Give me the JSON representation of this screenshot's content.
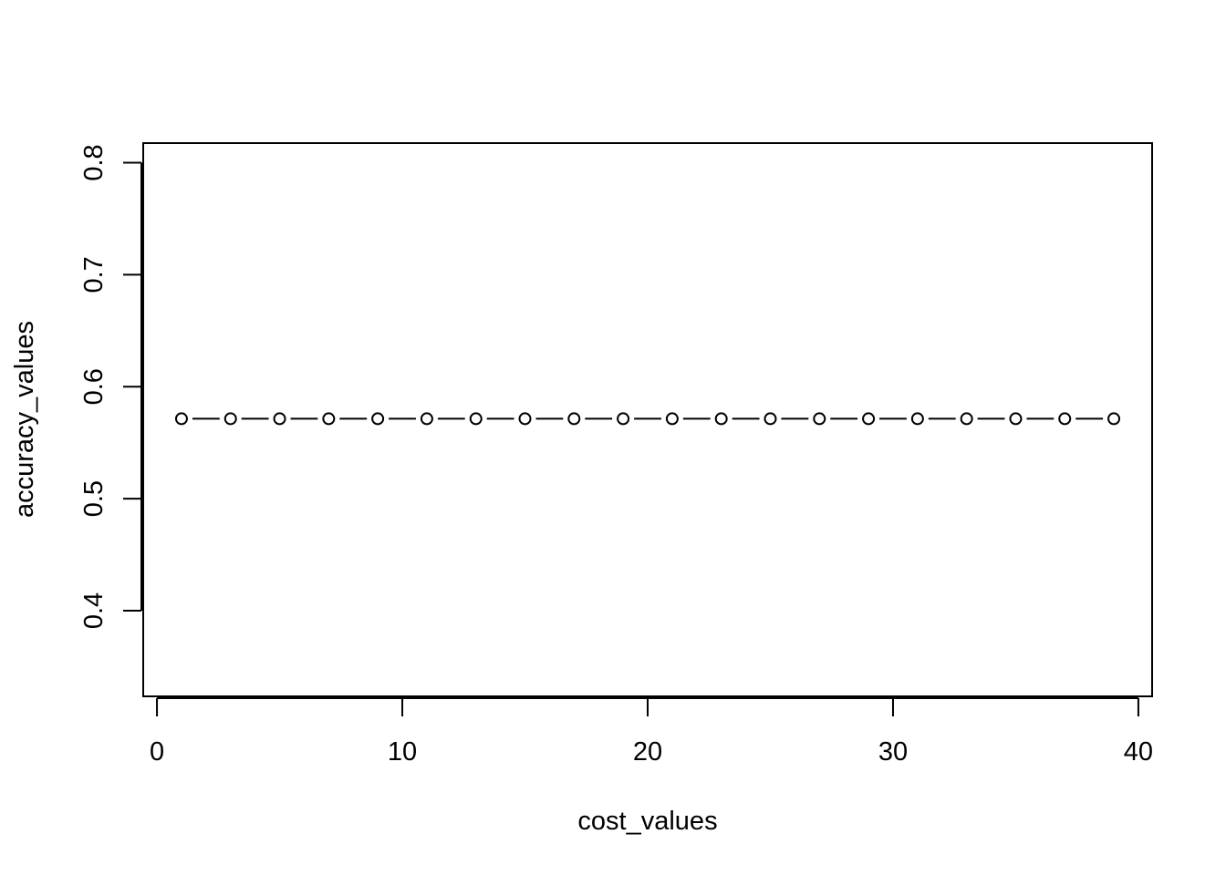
{
  "chart_data": {
    "type": "line",
    "title": "",
    "xlabel": "cost_values",
    "ylabel": "accuracy_values",
    "xlim": [
      -0.56,
      40.56
    ],
    "ylim": [
      0.3235,
      0.8175
    ],
    "x_ticks": [
      0,
      10,
      20,
      30,
      40
    ],
    "y_ticks": [
      0.4,
      0.5,
      0.6,
      0.7,
      0.8
    ],
    "x_tick_labels": [
      "0",
      "10",
      "20",
      "30",
      "40"
    ],
    "y_tick_labels": [
      "0.4",
      "0.5",
      "0.6",
      "0.7",
      "0.8"
    ],
    "grid": false,
    "marker": "open-circle",
    "line_style": "solid-broken-at-points",
    "series": [
      {
        "x": [
          1,
          3,
          5,
          7,
          9,
          11,
          13,
          15,
          17,
          19,
          21,
          23,
          25,
          27,
          29,
          31,
          33,
          35,
          37,
          39
        ],
        "y": [
          0.5714,
          0.5714,
          0.5714,
          0.5714,
          0.5714,
          0.5714,
          0.5714,
          0.5714,
          0.5714,
          0.5714,
          0.5714,
          0.5714,
          0.5714,
          0.5714,
          0.5714,
          0.5714,
          0.5714,
          0.5714,
          0.5714,
          0.5714
        ]
      }
    ]
  }
}
